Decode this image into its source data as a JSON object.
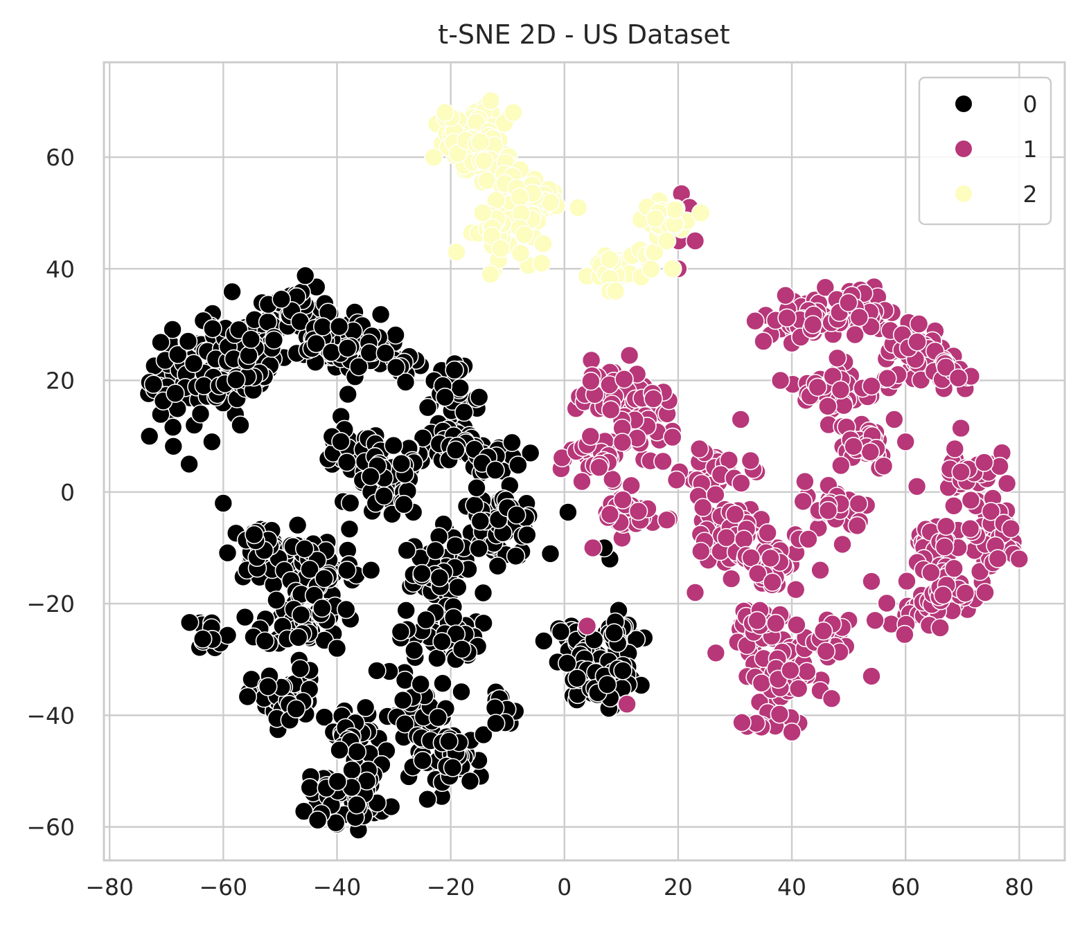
{
  "chart_data": {
    "type": "scatter",
    "title": "t-SNE 2D - US Dataset",
    "xlabel": "",
    "ylabel": "",
    "xlim": [
      -81,
      88
    ],
    "ylim": [
      -66,
      77
    ],
    "xticks": [
      -80,
      -60,
      -40,
      -20,
      0,
      20,
      40,
      60,
      80
    ],
    "yticks": [
      -60,
      -40,
      -20,
      0,
      20,
      40,
      60
    ],
    "xtick_labels": [
      "−80",
      "−60",
      "−40",
      "−20",
      "0",
      "20",
      "40",
      "60",
      "80"
    ],
    "ytick_labels": [
      "−60",
      "−40",
      "−20",
      "0",
      "20",
      "40",
      "60"
    ],
    "grid": true,
    "legend": {
      "placement": "top-right",
      "entries": [
        "0",
        "1",
        "2"
      ]
    },
    "colors": {
      "0": "#000000",
      "1": "#b73779",
      "2": "#fcfdbf",
      "marker_edge": "#ffffff",
      "grid": "#cccccc",
      "text": "#262626"
    },
    "series": [
      {
        "name": "0",
        "color": "#000000",
        "blobs": [
          {
            "cx": -68,
            "cy": 20,
            "rx": 5,
            "ry": 9,
            "n": 45
          },
          {
            "cx": -60,
            "cy": 22,
            "rx": 6,
            "ry": 8,
            "n": 60
          },
          {
            "cx": -55,
            "cy": 25,
            "rx": 6,
            "ry": 8,
            "n": 50
          },
          {
            "cx": -48,
            "cy": 33,
            "rx": 6,
            "ry": 5,
            "n": 45
          },
          {
            "cx": -42,
            "cy": 27,
            "rx": 5,
            "ry": 6,
            "n": 40
          },
          {
            "cx": -35,
            "cy": 26,
            "rx": 6,
            "ry": 5,
            "n": 30
          },
          {
            "cx": -28,
            "cy": 23,
            "rx": 4,
            "ry": 3,
            "n": 15
          },
          {
            "cx": -20,
            "cy": 16,
            "rx": 5,
            "ry": 6,
            "n": 40
          },
          {
            "cx": -20,
            "cy": 8,
            "rx": 7,
            "ry": 4,
            "n": 35
          },
          {
            "cx": -38,
            "cy": 7,
            "rx": 6,
            "ry": 4,
            "n": 35
          },
          {
            "cx": -31,
            "cy": 1,
            "rx": 6,
            "ry": 6,
            "n": 50
          },
          {
            "cx": -12,
            "cy": 6,
            "rx": 5,
            "ry": 3,
            "n": 30
          },
          {
            "cx": -12,
            "cy": -6,
            "rx": 8,
            "ry": 6,
            "n": 70
          },
          {
            "cx": -53,
            "cy": -11,
            "rx": 6,
            "ry": 5,
            "n": 50
          },
          {
            "cx": -43,
            "cy": -13,
            "rx": 6,
            "ry": 6,
            "n": 60
          },
          {
            "cx": -46,
            "cy": -23,
            "rx": 7,
            "ry": 5,
            "n": 60
          },
          {
            "cx": -62,
            "cy": -25,
            "rx": 3,
            "ry": 3,
            "n": 15
          },
          {
            "cx": -24,
            "cy": -15,
            "rx": 6,
            "ry": 6,
            "n": 55
          },
          {
            "cx": -22,
            "cy": -26,
            "rx": 7,
            "ry": 5,
            "n": 40
          },
          {
            "cx": -49,
            "cy": -37,
            "rx": 6,
            "ry": 5,
            "n": 45
          },
          {
            "cx": -37,
            "cy": -44,
            "rx": 5,
            "ry": 5,
            "n": 40
          },
          {
            "cx": -38,
            "cy": -54,
            "rx": 7,
            "ry": 5,
            "n": 55
          },
          {
            "cx": -26,
            "cy": -40,
            "rx": 6,
            "ry": 7,
            "n": 55
          },
          {
            "cx": -20,
            "cy": -48,
            "rx": 6,
            "ry": 5,
            "n": 40
          },
          {
            "cx": -10,
            "cy": -40,
            "rx": 3,
            "ry": 4,
            "n": 12
          },
          {
            "cx": 2,
            "cy": -27,
            "rx": 3,
            "ry": 4,
            "n": 25
          },
          {
            "cx": 4,
            "cy": -33,
            "rx": 4,
            "ry": 4,
            "n": 30
          },
          {
            "cx": 10,
            "cy": -26,
            "rx": 4,
            "ry": 4,
            "n": 30
          },
          {
            "cx": 8,
            "cy": -34,
            "rx": 4,
            "ry": 4,
            "n": 25
          }
        ],
        "points": [
          [
            -73,
            10
          ],
          [
            -66,
            5
          ],
          [
            -60,
            -2
          ],
          [
            -64,
            14
          ],
          [
            -34,
            -14
          ],
          [
            -40,
            -28
          ],
          [
            -33,
            -32
          ],
          [
            -21,
            17
          ],
          [
            -15,
            17
          ],
          [
            8,
            -12
          ],
          [
            7,
            -10
          ],
          [
            -57,
            12
          ],
          [
            -62,
            9
          ]
        ]
      },
      {
        "name": "1",
        "color": "#b73779",
        "blobs": [
          {
            "cx": 8,
            "cy": 18,
            "rx": 6,
            "ry": 5,
            "n": 45
          },
          {
            "cx": 14,
            "cy": 13,
            "rx": 6,
            "ry": 6,
            "n": 45
          },
          {
            "cx": 6,
            "cy": 6,
            "rx": 5,
            "ry": 6,
            "n": 40
          },
          {
            "cx": 11,
            "cy": -4,
            "rx": 5,
            "ry": 4,
            "n": 30
          },
          {
            "cx": 27,
            "cy": 4,
            "rx": 6,
            "ry": 4,
            "n": 30
          },
          {
            "cx": 28,
            "cy": -7,
            "rx": 6,
            "ry": 5,
            "n": 45
          },
          {
            "cx": 36,
            "cy": -12,
            "rx": 5,
            "ry": 6,
            "n": 40
          },
          {
            "cx": 33,
            "cy": -25,
            "rx": 5,
            "ry": 5,
            "n": 40
          },
          {
            "cx": 38,
            "cy": -33,
            "rx": 5,
            "ry": 5,
            "n": 45
          },
          {
            "cx": 36,
            "cy": -41,
            "rx": 4,
            "ry": 2,
            "n": 15
          },
          {
            "cx": 46,
            "cy": -27,
            "rx": 4,
            "ry": 4,
            "n": 20
          },
          {
            "cx": 42,
            "cy": 31,
            "rx": 7,
            "ry": 4,
            "n": 45
          },
          {
            "cx": 52,
            "cy": 33,
            "rx": 5,
            "ry": 4,
            "n": 40
          },
          {
            "cx": 48,
            "cy": 18,
            "rx": 6,
            "ry": 5,
            "n": 35
          },
          {
            "cx": 52,
            "cy": 9,
            "rx": 6,
            "ry": 5,
            "n": 35
          },
          {
            "cx": 48,
            "cy": -3,
            "rx": 6,
            "ry": 5,
            "n": 30
          },
          {
            "cx": 62,
            "cy": 25,
            "rx": 6,
            "ry": 6,
            "n": 60
          },
          {
            "cx": 68,
            "cy": 21,
            "rx": 4,
            "ry": 3,
            "n": 20
          },
          {
            "cx": 71,
            "cy": 4,
            "rx": 5,
            "ry": 6,
            "n": 35
          },
          {
            "cx": 75,
            "cy": -8,
            "rx": 5,
            "ry": 6,
            "n": 40
          },
          {
            "cx": 64,
            "cy": -10,
            "rx": 5,
            "ry": 5,
            "n": 35
          },
          {
            "cx": 63,
            "cy": -21,
            "rx": 6,
            "ry": 3,
            "n": 35
          },
          {
            "cx": 68,
            "cy": -17,
            "rx": 4,
            "ry": 4,
            "n": 20
          },
          {
            "cx": 19,
            "cy": 48,
            "rx": 2,
            "ry": 4,
            "n": 8
          }
        ],
        "points": [
          [
            4,
            -24
          ],
          [
            11,
            -38
          ],
          [
            8,
            -4
          ],
          [
            5,
            -10
          ],
          [
            20,
            40
          ],
          [
            23,
            45
          ],
          [
            22,
            51
          ],
          [
            31,
            13
          ],
          [
            30,
            -4
          ],
          [
            38,
            20
          ],
          [
            40,
            -43
          ],
          [
            54,
            -33
          ],
          [
            47,
            -37
          ],
          [
            45,
            -14
          ],
          [
            54,
            -16
          ],
          [
            58,
            13
          ],
          [
            62,
            1
          ],
          [
            60,
            9
          ],
          [
            80,
            -12
          ],
          [
            74,
            -18
          ],
          [
            23,
            -18
          ],
          [
            18,
            -5
          ],
          [
            54,
            19
          ],
          [
            48,
            24
          ],
          [
            35,
            27
          ]
        ]
      },
      {
        "name": "2",
        "color": "#fcfdbf",
        "blobs": [
          {
            "cx": -14,
            "cy": 66,
            "rx": 4,
            "ry": 4,
            "n": 40
          },
          {
            "cx": -20,
            "cy": 64,
            "rx": 3,
            "ry": 4,
            "n": 25
          },
          {
            "cx": -15,
            "cy": 60,
            "rx": 5,
            "ry": 4,
            "n": 35
          },
          {
            "cx": -6,
            "cy": 52,
            "rx": 6,
            "ry": 5,
            "n": 55
          },
          {
            "cx": -12,
            "cy": 47,
            "rx": 5,
            "ry": 5,
            "n": 35
          },
          {
            "cx": 8,
            "cy": 40,
            "rx": 4,
            "ry": 3,
            "n": 25
          },
          {
            "cx": 14,
            "cy": 42,
            "rx": 3,
            "ry": 3,
            "n": 12
          },
          {
            "cx": 18,
            "cy": 49,
            "rx": 4,
            "ry": 3,
            "n": 25
          }
        ],
        "points": [
          [
            -23,
            60
          ],
          [
            -21,
            68
          ],
          [
            -19,
            43
          ],
          [
            -13,
            39
          ],
          [
            -9,
            68
          ],
          [
            -4,
            41
          ],
          [
            8,
            36
          ],
          [
            9,
            36
          ],
          [
            19,
            40
          ],
          [
            18,
            45
          ],
          [
            24,
            50
          ],
          [
            16,
            49
          ]
        ]
      }
    ]
  }
}
